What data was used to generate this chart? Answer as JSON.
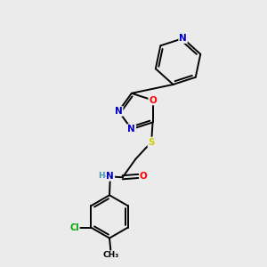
{
  "background_color": "#ebebeb",
  "bond_color": "#000000",
  "atom_colors": {
    "N": "#0000cc",
    "O": "#ff0000",
    "S": "#cccc00",
    "Cl": "#00aa00",
    "C": "#000000",
    "H": "#888888",
    "NH": "#4499aa"
  },
  "figsize": [
    3.0,
    3.0
  ],
  "dpi": 100
}
